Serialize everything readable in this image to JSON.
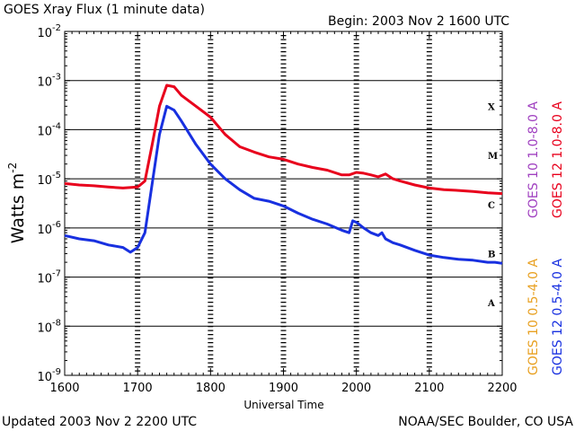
{
  "header": {
    "title": "GOES Xray Flux (1 minute data)",
    "begin": "Begin: 2003 Nov 2 1600 UTC"
  },
  "footer": {
    "updated": "Updated 2003 Nov  2 2200 UTC",
    "credit": "NOAA/SEC Boulder, CO USA"
  },
  "chart_data": {
    "type": "line",
    "title": "GOES Xray Flux (1 minute data)",
    "xlabel": "Universal Time",
    "ylabel": "Watts m",
    "ylabel_exponent": "-2",
    "yscale": "log",
    "ylim": [
      1e-09,
      0.01
    ],
    "xlim": [
      1600,
      2200
    ],
    "x_ticks": [
      "1600",
      "1700",
      "1800",
      "1900",
      "2000",
      "2100",
      "2200"
    ],
    "y_ticks": [
      {
        "base": "10",
        "exp": "-9",
        "value": 1e-09
      },
      {
        "base": "10",
        "exp": "-8",
        "value": 1e-08
      },
      {
        "base": "10",
        "exp": "-7",
        "value": 1e-07
      },
      {
        "base": "10",
        "exp": "-6",
        "value": 1e-06
      },
      {
        "base": "10",
        "exp": "-5",
        "value": 1e-05
      },
      {
        "base": "10",
        "exp": "-4",
        "value": 0.0001
      },
      {
        "base": "10",
        "exp": "-3",
        "value": 0.001
      },
      {
        "base": "10",
        "exp": "-2",
        "value": 0.01
      }
    ],
    "flare_classes": [
      {
        "label": "X",
        "value": 0.0003
      },
      {
        "label": "M",
        "value": 3e-05
      },
      {
        "label": "C",
        "value": 3e-06
      },
      {
        "label": "B",
        "value": 3e-07
      },
      {
        "label": "A",
        "value": 3e-08
      }
    ],
    "series": [
      {
        "name": "GOES 10 1.0-8.0 A",
        "color": "#a040c0",
        "x": [
          1600,
          1620,
          1640,
          1660,
          1680,
          1700,
          1710,
          1720,
          1730,
          1740,
          1750,
          1760,
          1780,
          1800,
          1820,
          1840,
          1860,
          1880,
          1900,
          1920,
          1940,
          1960,
          1980,
          1990,
          2000,
          2010,
          2020,
          2030,
          2040,
          2050,
          2060,
          2080,
          2100,
          2120,
          2140,
          2160,
          2180,
          2200
        ],
        "y": [
          8e-06,
          7.5e-06,
          7.2e-06,
          6.8e-06,
          6.5e-06,
          6.8e-06,
          9e-06,
          5e-05,
          0.0003,
          0.0008,
          0.00075,
          0.0005,
          0.0003,
          0.00018,
          8e-05,
          4.5e-05,
          3.5e-05,
          2.8e-05,
          2.5e-05,
          2e-05,
          1.7e-05,
          1.5e-05,
          1.2e-05,
          1.2e-05,
          1.35e-05,
          1.3e-05,
          1.2e-05,
          1.1e-05,
          1.25e-05,
          1e-05,
          9e-06,
          7.5e-06,
          6.5e-06,
          6e-06,
          5.8e-06,
          5.5e-06,
          5.2e-06,
          5e-06
        ]
      },
      {
        "name": "GOES 12 1.0-8.0 A",
        "color": "#e8001c",
        "x": [
          1600,
          1620,
          1640,
          1660,
          1680,
          1700,
          1710,
          1720,
          1730,
          1740,
          1750,
          1760,
          1780,
          1800,
          1820,
          1840,
          1860,
          1880,
          1900,
          1920,
          1940,
          1960,
          1980,
          1990,
          2000,
          2010,
          2020,
          2030,
          2040,
          2050,
          2060,
          2080,
          2100,
          2120,
          2140,
          2160,
          2180,
          2200
        ],
        "y": [
          8e-06,
          7.5e-06,
          7.2e-06,
          6.8e-06,
          6.5e-06,
          6.8e-06,
          9e-06,
          5e-05,
          0.0003,
          0.0008,
          0.00075,
          0.0005,
          0.0003,
          0.00018,
          8e-05,
          4.5e-05,
          3.5e-05,
          2.8e-05,
          2.5e-05,
          2e-05,
          1.7e-05,
          1.5e-05,
          1.2e-05,
          1.2e-05,
          1.35e-05,
          1.3e-05,
          1.2e-05,
          1.1e-05,
          1.25e-05,
          1e-05,
          9e-06,
          7.5e-06,
          6.5e-06,
          6e-06,
          5.8e-06,
          5.5e-06,
          5.2e-06,
          5e-06
        ]
      },
      {
        "name": "GOES 10 0.5-4.0 A",
        "color": "#e8a020",
        "x": [
          1600,
          1620,
          1640,
          1660,
          1680,
          1690,
          1700,
          1710,
          1720,
          1730,
          1740,
          1750,
          1760,
          1780,
          1800,
          1820,
          1840,
          1860,
          1880,
          1900,
          1920,
          1940,
          1960,
          1980,
          1990,
          1995,
          2000,
          2010,
          2020,
          2030,
          2035,
          2040,
          2050,
          2060,
          2080,
          2100,
          2120,
          2140,
          2160,
          2180,
          2190,
          2200
        ],
        "y": [
          7e-07,
          6e-07,
          5.5e-07,
          4.5e-07,
          4e-07,
          3.2e-07,
          4e-07,
          8e-07,
          8e-06,
          8e-05,
          0.0003,
          0.00025,
          0.00015,
          5e-05,
          2e-05,
          1e-05,
          6e-06,
          4e-06,
          3.5e-06,
          2.8e-06,
          2e-06,
          1.5e-06,
          1.2e-06,
          9e-07,
          8e-07,
          1.4e-06,
          1.3e-06,
          1e-06,
          8e-07,
          7e-07,
          8e-07,
          6e-07,
          5e-07,
          4.5e-07,
          3.5e-07,
          2.8e-07,
          2.5e-07,
          2.3e-07,
          2.2e-07,
          2e-07,
          2e-07,
          1.9e-07
        ]
      },
      {
        "name": "GOES 12 0.5-4.0 A",
        "color": "#1830e0",
        "x": [
          1600,
          1620,
          1640,
          1660,
          1680,
          1690,
          1700,
          1710,
          1720,
          1730,
          1740,
          1750,
          1760,
          1780,
          1800,
          1820,
          1840,
          1860,
          1880,
          1900,
          1920,
          1940,
          1960,
          1980,
          1990,
          1995,
          2000,
          2010,
          2020,
          2030,
          2035,
          2040,
          2050,
          2060,
          2080,
          2100,
          2120,
          2140,
          2160,
          2180,
          2190,
          2200
        ],
        "y": [
          7e-07,
          6e-07,
          5.5e-07,
          4.5e-07,
          4e-07,
          3.2e-07,
          4e-07,
          8e-07,
          8e-06,
          8e-05,
          0.0003,
          0.00025,
          0.00015,
          5e-05,
          2e-05,
          1e-05,
          6e-06,
          4e-06,
          3.5e-06,
          2.8e-06,
          2e-06,
          1.5e-06,
          1.2e-06,
          9e-07,
          8e-07,
          1.4e-06,
          1.3e-06,
          1e-06,
          8e-07,
          7e-07,
          8e-07,
          6e-07,
          5e-07,
          4.5e-07,
          3.5e-07,
          2.8e-07,
          2.5e-07,
          2.3e-07,
          2.2e-07,
          2e-07,
          2e-07,
          1.9e-07
        ]
      }
    ],
    "legend_placement": "right, vertical",
    "grid": true
  }
}
